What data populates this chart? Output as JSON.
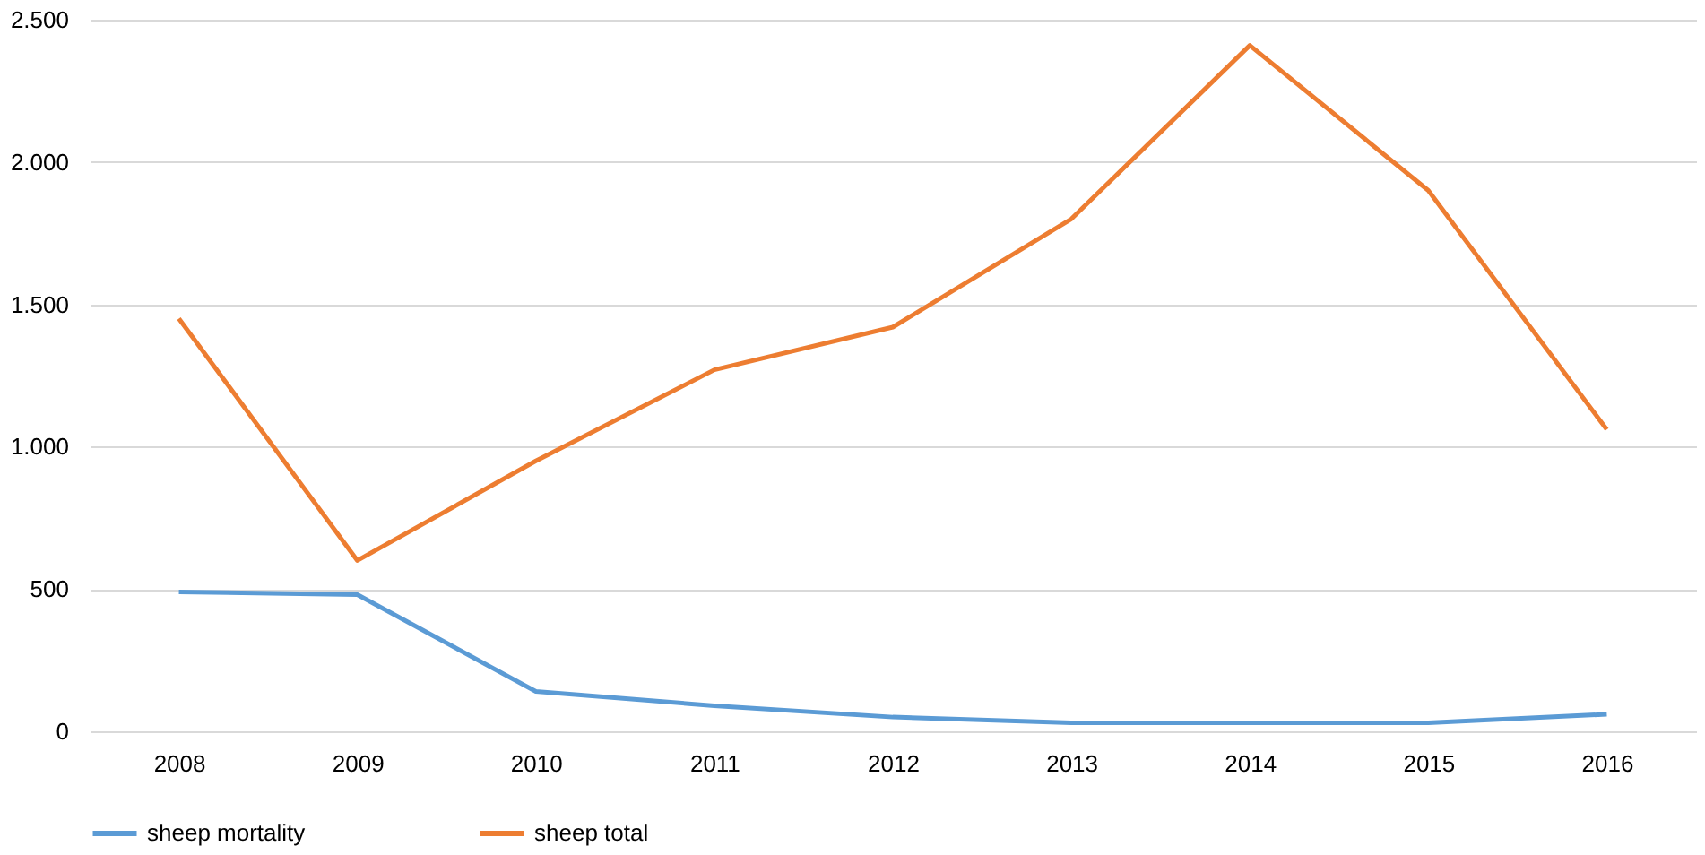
{
  "chart_data": {
    "type": "line",
    "categories": [
      "2008",
      "2009",
      "2010",
      "2011",
      "2012",
      "2013",
      "2014",
      "2015",
      "2016"
    ],
    "series": [
      {
        "name": "sheep mortality",
        "color": "#5b9bd5",
        "values": [
          490,
          480,
          140,
          90,
          50,
          30,
          30,
          30,
          60
        ]
      },
      {
        "name": "sheep total",
        "color": "#ed7d31",
        "values": [
          1450,
          600,
          950,
          1270,
          1420,
          1800,
          2410,
          1900,
          1060
        ]
      }
    ],
    "ylim": [
      0,
      2500
    ],
    "yticks": [
      0,
      500,
      {
        "value": 1000,
        "label": "1.000"
      },
      {
        "value": 1500,
        "label": "1.500"
      },
      {
        "value": 2000,
        "label": "2.000"
      },
      {
        "value": 2500,
        "label": "2.500"
      }
    ],
    "grid": "y",
    "legend": "bottom",
    "marker": "none",
    "line_style": "solid"
  }
}
